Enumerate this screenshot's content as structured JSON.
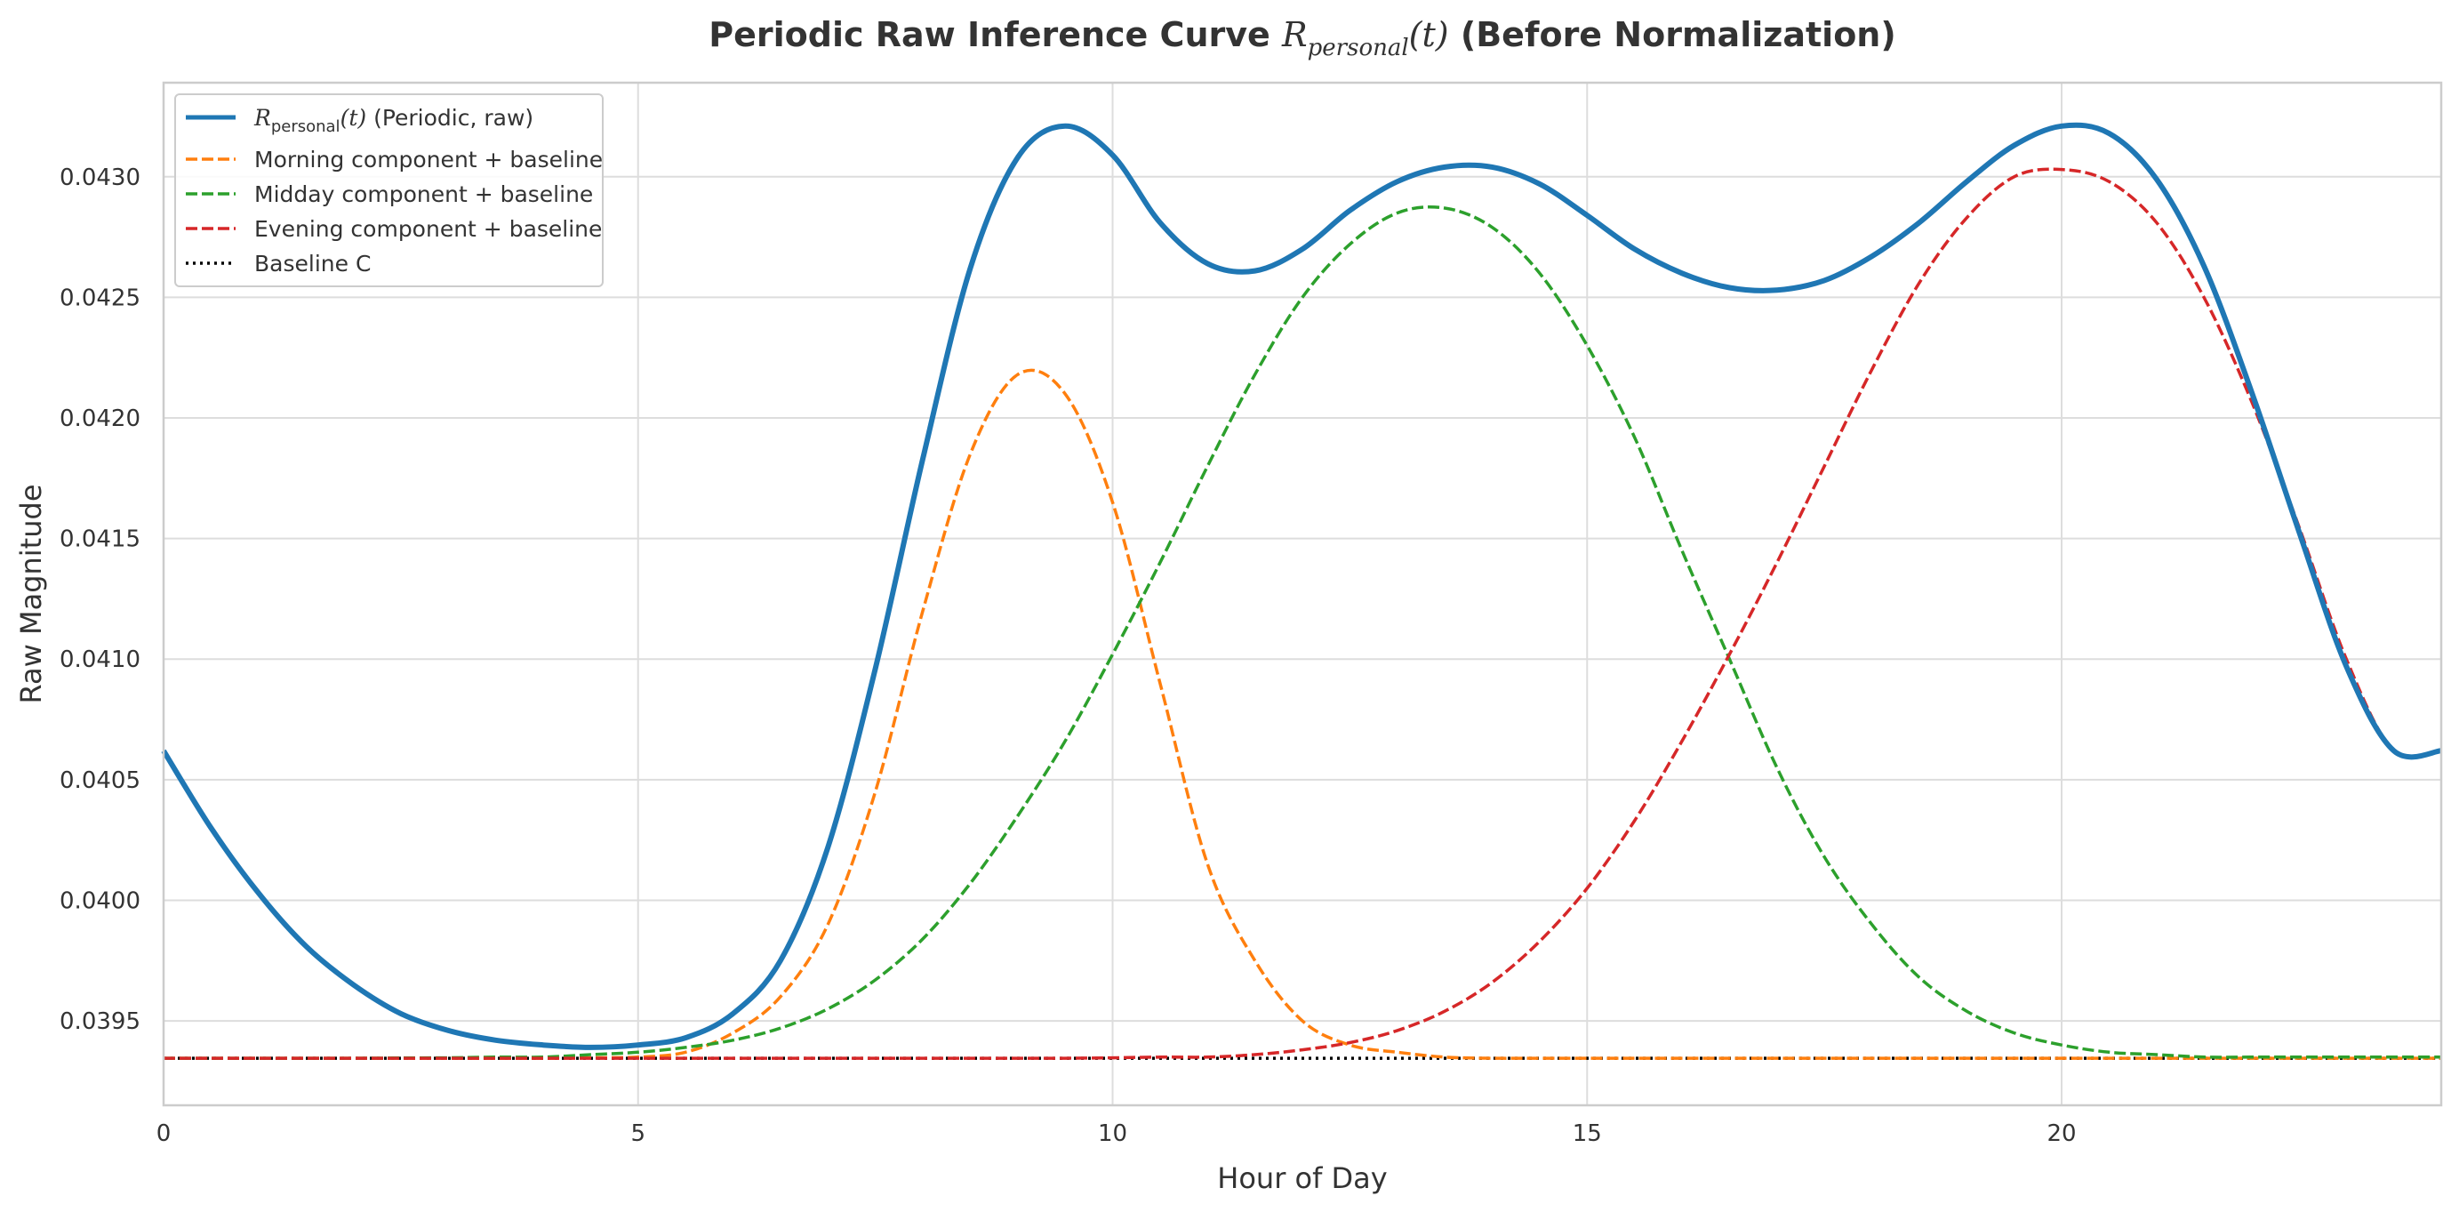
{
  "chart_data": {
    "type": "line",
    "title_parts": {
      "before": "Periodic Raw Inference Curve ",
      "math_symbol": "R",
      "math_subscript": "personal",
      "math_arg": "(t)",
      "after": " (Before Normalization)"
    },
    "xlabel": "Hour of Day",
    "ylabel": "Raw Magnitude",
    "xlim": [
      0,
      24
    ],
    "ylim": [
      0.03915,
      0.04339
    ],
    "xticks": [
      0,
      5,
      10,
      15,
      20
    ],
    "xtick_labels": [
      "0",
      "5",
      "10",
      "15",
      "20"
    ],
    "yticks": [
      0.0395,
      0.04,
      0.0405,
      0.041,
      0.0415,
      0.042,
      0.0425,
      0.043
    ],
    "ytick_labels": [
      "0.0395",
      "0.0400",
      "0.0405",
      "0.0410",
      "0.0415",
      "0.0420",
      "0.0425",
      "0.0430"
    ],
    "grid": true,
    "legend_position": "top-left",
    "baseline": 0.039345,
    "x": [
      0,
      0.5,
      1,
      1.5,
      2,
      2.5,
      3,
      3.5,
      4,
      4.5,
      5,
      5.5,
      6,
      6.5,
      7,
      7.5,
      8,
      8.5,
      9,
      9.5,
      10,
      10.5,
      11,
      11.5,
      12,
      12.5,
      13,
      13.5,
      14,
      14.5,
      15,
      15.5,
      16,
      16.5,
      17,
      17.5,
      18,
      18.5,
      19,
      19.5,
      20,
      20.5,
      21,
      21.5,
      22,
      22.5,
      23,
      23.5,
      24
    ],
    "series": [
      {
        "name_parts": {
          "math_symbol": "R",
          "math_subscript": "personal",
          "math_arg": "(t)",
          "after": " (Periodic, raw)"
        },
        "color": "#1f77b4",
        "style": "solid",
        "values": [
          0.04062,
          0.0403,
          0.04003,
          0.03981,
          0.03965,
          0.03953,
          0.03946,
          0.03942,
          0.0394,
          0.03939,
          0.0394,
          0.03943,
          0.03953,
          0.03975,
          0.04022,
          0.04096,
          0.04183,
          0.04262,
          0.04308,
          0.04321,
          0.04309,
          0.04281,
          0.04264,
          0.04261,
          0.0427,
          0.04286,
          0.04298,
          0.04304,
          0.04304,
          0.04297,
          0.04284,
          0.0427,
          0.0426,
          0.04254,
          0.04253,
          0.04257,
          0.04267,
          0.04281,
          0.04298,
          0.04313,
          0.04321,
          0.04318,
          0.04299,
          0.04263,
          0.04211,
          0.04153,
          0.04097,
          0.04062,
          0.04062
        ]
      },
      {
        "name": "Morning component + baseline",
        "color": "#ff7f0e",
        "style": "dashed",
        "values": [
          0.039345,
          0.039345,
          0.039345,
          0.039345,
          0.039345,
          0.039345,
          0.039345,
          0.039345,
          0.039345,
          0.039347,
          0.03935,
          0.03937,
          0.03945,
          0.0396,
          0.0399,
          0.04045,
          0.0412,
          0.04185,
          0.04218,
          0.0421,
          0.04165,
          0.0409,
          0.04015,
          0.03975,
          0.0395,
          0.0394,
          0.03937,
          0.03935,
          0.039345,
          0.039345,
          0.039345,
          0.039345,
          0.039345,
          0.039345,
          0.039345,
          0.039345,
          0.039345,
          0.039345,
          0.039345,
          0.039345,
          0.039345,
          0.039345,
          0.039345,
          0.039345,
          0.039345,
          0.039345,
          0.039345,
          0.039345,
          0.039345
        ]
      },
      {
        "name": "Midday component + baseline",
        "color": "#2ca02c",
        "style": "dashed",
        "values": [
          0.039345,
          0.039345,
          0.039345,
          0.039345,
          0.039345,
          0.039346,
          0.039347,
          0.03935,
          0.03935,
          0.03936,
          0.03937,
          0.03939,
          0.03942,
          0.03947,
          0.03955,
          0.03967,
          0.03984,
          0.04007,
          0.04035,
          0.04066,
          0.04102,
          0.0414,
          0.0418,
          0.04218,
          0.0425,
          0.04272,
          0.04285,
          0.04287,
          0.04279,
          0.0426,
          0.0423,
          0.04192,
          0.04145,
          0.041,
          0.04055,
          0.04018,
          0.0399,
          0.03968,
          0.03954,
          0.03945,
          0.0394,
          0.03937,
          0.03936,
          0.03935,
          0.03935,
          0.03935,
          0.03935,
          0.03935,
          0.03935
        ]
      },
      {
        "name": "Evening component + baseline",
        "color": "#d62728",
        "style": "dashed",
        "values": [
          0.039345,
          0.039345,
          0.039345,
          0.039345,
          0.039345,
          0.039345,
          0.039345,
          0.039345,
          0.039345,
          0.039345,
          0.039345,
          0.039345,
          0.039345,
          0.039345,
          0.039345,
          0.039345,
          0.039345,
          0.039345,
          0.039345,
          0.039345,
          0.039347,
          0.03935,
          0.03935,
          0.03936,
          0.03938,
          0.03941,
          0.03946,
          0.03954,
          0.03966,
          0.03983,
          0.04005,
          0.04033,
          0.04066,
          0.04102,
          0.0414,
          0.0418,
          0.0422,
          0.04256,
          0.04283,
          0.043,
          0.04303,
          0.04298,
          0.04281,
          0.0425,
          0.04207,
          0.04155,
          0.041,
          0.04062,
          0.04062
        ]
      },
      {
        "name": "Baseline C",
        "color": "#000000",
        "style": "dotted",
        "values": [
          0.039345,
          0.039345,
          0.039345,
          0.039345,
          0.039345,
          0.039345,
          0.039345,
          0.039345,
          0.039345,
          0.039345,
          0.039345,
          0.039345,
          0.039345,
          0.039345,
          0.039345,
          0.039345,
          0.039345,
          0.039345,
          0.039345,
          0.039345,
          0.039345,
          0.039345,
          0.039345,
          0.039345,
          0.039345,
          0.039345,
          0.039345,
          0.039345,
          0.039345,
          0.039345,
          0.039345,
          0.039345,
          0.039345,
          0.039345,
          0.039345,
          0.039345,
          0.039345,
          0.039345,
          0.039345,
          0.039345,
          0.039345,
          0.039345,
          0.039345,
          0.039345,
          0.039345,
          0.039345,
          0.039345,
          0.039345,
          0.039345
        ]
      }
    ]
  }
}
